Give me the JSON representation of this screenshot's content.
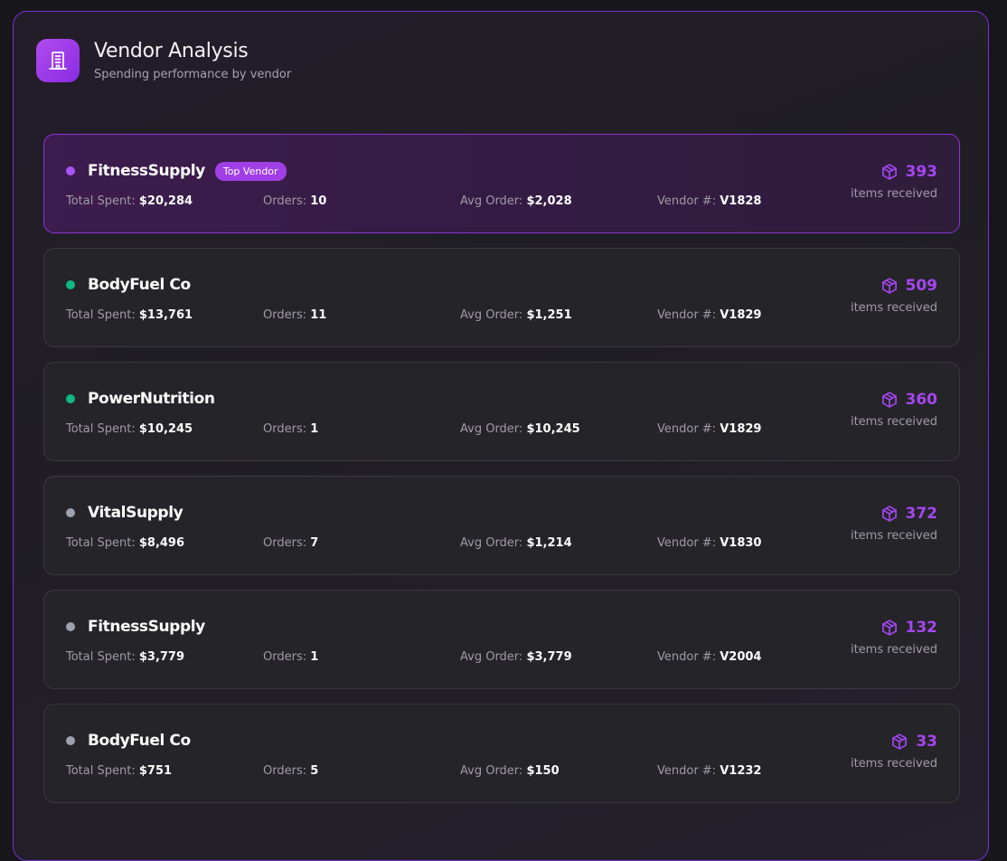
{
  "header": {
    "title": "Vendor Analysis",
    "subtitle": "Spending performance by vendor",
    "icon": "building-icon",
    "accent": "#a13fe6"
  },
  "labels": {
    "total_spent": "Total Spent:",
    "orders": "Orders:",
    "avg_order": "Avg Order:",
    "vendor_no": "Vendor #:",
    "items_received": "items received",
    "top_badge": "Top Vendor"
  },
  "vendors": [
    {
      "name": "FitnessSupply",
      "dot": "#a855f7",
      "total": "$20,284",
      "orders": "10",
      "avg": "$2,028",
      "id": "V1828",
      "items": "393",
      "top": true
    },
    {
      "name": "BodyFuel Co",
      "dot": "#10b981",
      "total": "$13,761",
      "orders": "11",
      "avg": "$1,251",
      "id": "V1829",
      "items": "509",
      "top": false
    },
    {
      "name": "PowerNutrition",
      "dot": "#10b981",
      "total": "$10,245",
      "orders": "1",
      "avg": "$10,245",
      "id": "V1829",
      "items": "360",
      "top": false
    },
    {
      "name": "VitalSupply",
      "dot": "#9ca3af",
      "total": "$8,496",
      "orders": "7",
      "avg": "$1,214",
      "id": "V1830",
      "items": "372",
      "top": false
    },
    {
      "name": "FitnessSupply",
      "dot": "#9ca3af",
      "total": "$3,779",
      "orders": "1",
      "avg": "$3,779",
      "id": "V2004",
      "items": "132",
      "top": false
    },
    {
      "name": "BodyFuel Co",
      "dot": "#9ca3af",
      "total": "$751",
      "orders": "5",
      "avg": "$150",
      "id": "V1232",
      "items": "33",
      "top": false
    }
  ]
}
